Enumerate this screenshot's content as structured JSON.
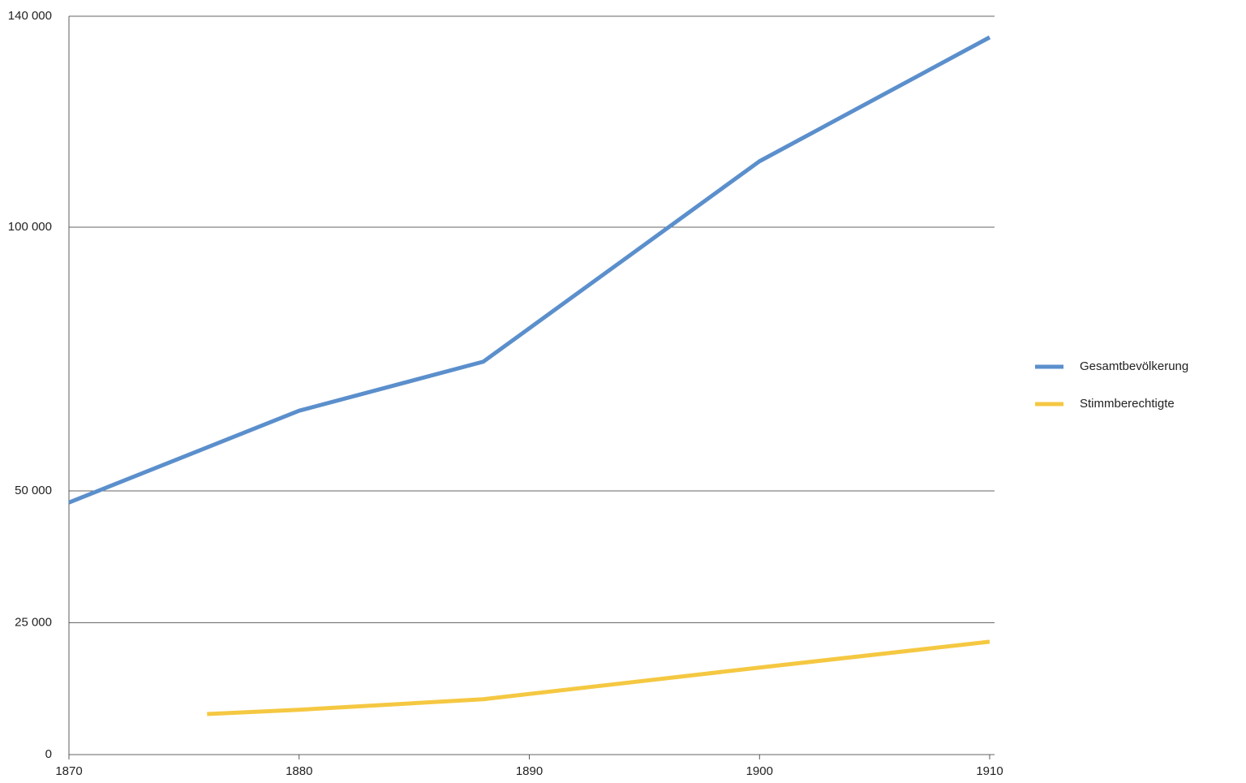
{
  "chart_data": {
    "type": "line",
    "xlim": [
      1870,
      1910
    ],
    "xticks": [
      1870,
      1880,
      1890,
      1900,
      1910
    ],
    "ylim": [
      0,
      140000
    ],
    "yticks": [
      0,
      {
        "value": 25000,
        "label": "25 000"
      },
      {
        "value": 50000,
        "label": "50 000"
      },
      {
        "value": 100000,
        "label": "100 000"
      },
      {
        "value": 140000,
        "label": "140 000"
      }
    ],
    "grid": true,
    "legend": "right",
    "series": [
      {
        "name": "Gesamtbevölkerung",
        "color": "#5b8fcc",
        "x": [
          1870,
          1880,
          1888,
          1900,
          1910
        ],
        "values": [
          47800,
          65200,
          74500,
          112500,
          136000
        ]
      },
      {
        "name": "Stimmberechtigte",
        "color": "#f5c842",
        "x": [
          1876,
          1880,
          1888,
          1900,
          1910
        ],
        "values": [
          7700,
          8500,
          10500,
          16500,
          21400
        ]
      }
    ]
  }
}
